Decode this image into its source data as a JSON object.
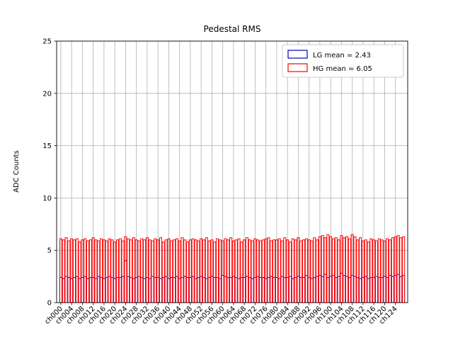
{
  "chart_data": {
    "type": "bar",
    "title": "Pedestal RMS",
    "xlabel": "",
    "ylabel": "ADC Counts",
    "ylim": [
      0,
      25
    ],
    "yticks": [
      0,
      5,
      10,
      15,
      20,
      25
    ],
    "n_channels": 128,
    "xtick_step": 4,
    "xticklabels": [
      "ch000",
      "ch004",
      "ch008",
      "ch012",
      "ch016",
      "ch020",
      "ch024",
      "ch028",
      "ch032",
      "ch036",
      "ch040",
      "ch044",
      "ch048",
      "ch052",
      "ch056",
      "ch060",
      "ch064",
      "ch068",
      "ch072",
      "ch076",
      "ch080",
      "ch084",
      "ch088",
      "ch092",
      "ch096",
      "ch100",
      "ch104",
      "ch108",
      "ch112",
      "ch116",
      "ch120",
      "ch124"
    ],
    "grid": true,
    "grid_color": "#b0b0b0",
    "axes_color": "#000000",
    "legend_position": "upper right",
    "series": [
      {
        "name": "LG mean = 2.43",
        "mean": 2.43,
        "color": "#0000cc",
        "values": [
          2.4,
          2.3,
          2.5,
          2.4,
          2.3,
          2.4,
          2.5,
          2.3,
          2.4,
          2.5,
          2.3,
          2.4,
          2.4,
          2.3,
          2.5,
          2.4,
          2.3,
          2.4,
          2.5,
          2.4,
          2.3,
          2.4,
          2.4,
          2.5,
          4.0,
          2.5,
          2.4,
          2.3,
          2.4,
          2.5,
          2.4,
          2.3,
          2.4,
          2.3,
          2.5,
          2.4,
          2.4,
          2.3,
          2.4,
          2.5,
          2.3,
          2.4,
          2.4,
          2.5,
          2.3,
          2.4,
          2.5,
          2.4,
          2.4,
          2.5,
          2.3,
          2.4,
          2.5,
          2.4,
          2.3,
          2.4,
          2.5,
          2.4,
          2.4,
          2.3,
          2.6,
          2.5,
          2.4,
          2.4,
          2.5,
          2.4,
          2.3,
          2.4,
          2.4,
          2.5,
          2.4,
          2.3,
          2.4,
          2.5,
          2.4,
          2.4,
          2.3,
          2.4,
          2.5,
          2.4,
          2.4,
          2.3,
          2.5,
          2.4,
          2.4,
          2.5,
          2.3,
          2.4,
          2.5,
          2.4,
          2.4,
          2.6,
          2.4,
          2.3,
          2.4,
          2.5,
          2.6,
          2.5,
          2.7,
          2.4,
          2.5,
          2.6,
          2.4,
          2.5,
          2.8,
          2.6,
          2.5,
          2.4,
          2.6,
          2.5,
          2.4,
          2.3,
          2.4,
          2.5,
          2.3,
          2.4,
          2.4,
          2.5,
          2.4,
          2.4,
          2.5,
          2.4,
          2.6,
          2.5,
          2.6,
          2.7,
          2.5,
          2.6
        ]
      },
      {
        "name": "HG mean = 6.05",
        "mean": 6.05,
        "color": "#ff0000",
        "values": [
          6.1,
          6.0,
          6.2,
          5.9,
          6.1,
          6.0,
          6.1,
          5.8,
          6.0,
          6.1,
          5.9,
          6.0,
          6.2,
          6.0,
          5.9,
          6.1,
          6.0,
          5.9,
          6.1,
          6.0,
          5.8,
          6.0,
          6.1,
          5.9,
          6.3,
          6.1,
          6.0,
          6.2,
          6.0,
          5.9,
          6.1,
          6.0,
          6.2,
          6.0,
          5.9,
          6.1,
          6.0,
          6.2,
          5.8,
          6.0,
          6.1,
          5.9,
          6.0,
          6.1,
          5.9,
          6.2,
          6.0,
          5.8,
          6.0,
          6.1,
          6.0,
          5.9,
          6.1,
          6.0,
          6.2,
          5.9,
          6.0,
          5.8,
          6.1,
          6.0,
          5.9,
          6.1,
          6.0,
          6.2,
          5.9,
          6.0,
          6.1,
          5.8,
          6.0,
          6.2,
          6.0,
          5.9,
          6.1,
          6.0,
          5.9,
          6.0,
          6.1,
          6.2,
          5.9,
          6.0,
          6.0,
          6.1,
          5.9,
          6.2,
          6.0,
          5.8,
          6.1,
          6.0,
          6.2,
          5.9,
          6.0,
          6.1,
          6.0,
          5.9,
          6.2,
          6.0,
          6.3,
          6.4,
          6.2,
          6.5,
          6.3,
          6.1,
          6.2,
          6.0,
          6.4,
          6.2,
          6.3,
          6.1,
          6.5,
          6.3,
          6.0,
          6.2,
          5.9,
          6.0,
          5.8,
          6.1,
          6.0,
          5.9,
          6.1,
          6.0,
          5.9,
          6.1,
          6.0,
          6.2,
          6.3,
          6.4,
          6.2,
          6.3
        ]
      }
    ]
  }
}
